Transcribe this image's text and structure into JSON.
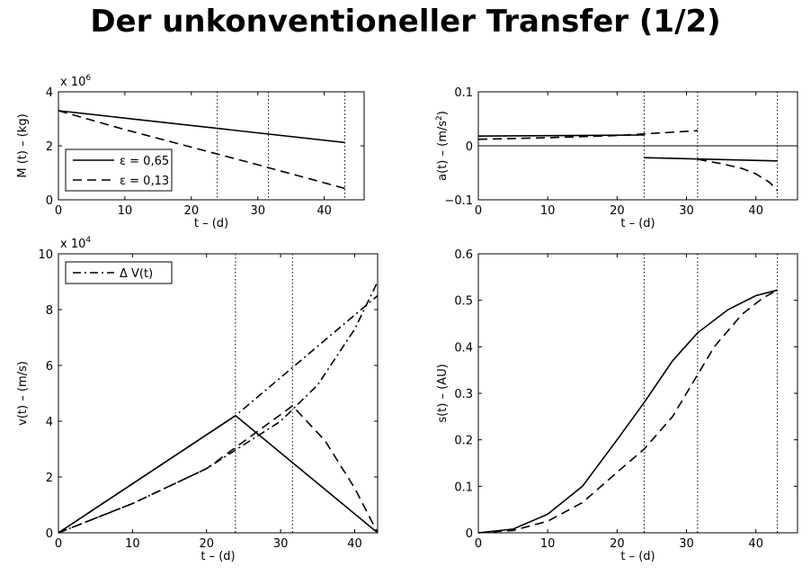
{
  "title": "Der unkonventioneller Transfer (1/2)",
  "chart_data": [
    {
      "type": "line",
      "xlabel": "t – (d)",
      "ylabel": "M (t) – (kg)",
      "multiplier": "x 10",
      "multiplier_exp": "6",
      "xlim": [
        0,
        46
      ],
      "ylim": [
        0,
        4
      ],
      "xticks": [
        "0",
        "10",
        "20",
        "30",
        "40"
      ],
      "yticks": [
        "0",
        "2",
        "4"
      ],
      "legend": "inside",
      "vlines": [
        23.9,
        31.6,
        43.1
      ],
      "series": [
        {
          "name": "ε = 0,65",
          "style": "solid",
          "x": [
            0,
            43.1
          ],
          "y": [
            3.3,
            2.12
          ]
        },
        {
          "name": "ε = 0,13",
          "style": "dashed",
          "x": [
            0,
            10,
            20,
            30,
            43.1
          ],
          "y": [
            3.3,
            2.6,
            1.95,
            1.3,
            0.42
          ]
        }
      ]
    },
    {
      "type": "line",
      "xlabel": "t – (d)",
      "ylabel": "a(t) – (m/s",
      "ylabel_exp": "2",
      "xlim": [
        0,
        46
      ],
      "ylim": [
        -0.1,
        0.1
      ],
      "xticks": [
        "0",
        "10",
        "20",
        "30",
        "40"
      ],
      "yticks": [
        "−0.1",
        "0",
        "0.1"
      ],
      "vlines": [
        23.9,
        31.6,
        43.1
      ],
      "zero_line": true,
      "series": [
        {
          "style": "solid",
          "segments": [
            {
              "x": [
                0,
                23.9
              ],
              "y": [
                0.018,
                0.02
              ]
            },
            {
              "x": [
                23.9,
                43.1
              ],
              "y": [
                -0.022,
                -0.028
              ]
            }
          ]
        },
        {
          "style": "dashed",
          "segments": [
            {
              "x": [
                0,
                10,
                20,
                31.6
              ],
              "y": [
                0.012,
                0.015,
                0.019,
                0.028
              ]
            },
            {
              "x": [
                31.6,
                35,
                38,
                40,
                42,
                43.1
              ],
              "y": [
                -0.025,
                -0.033,
                -0.042,
                -0.052,
                -0.068,
                -0.083
              ]
            }
          ]
        }
      ]
    },
    {
      "type": "line",
      "xlabel": "t – (d)",
      "ylabel": "v(t) – (m/s)",
      "multiplier": "x 10",
      "multiplier_exp": "4",
      "xlim": [
        0,
        43.1
      ],
      "ylim": [
        0,
        10
      ],
      "xticks": [
        "0",
        "10",
        "20",
        "30",
        "40"
      ],
      "yticks": [
        "0",
        "2",
        "4",
        "6",
        "8",
        "10"
      ],
      "legend": "inside",
      "vlines": [
        23.9,
        31.6,
        43.1
      ],
      "series": [
        {
          "name": "Δ V(t)",
          "style": "dashdot",
          "segments": [
            {
              "x": [
                0,
                23.9,
                43.1
              ],
              "y": [
                0,
                4.2,
                8.5
              ]
            },
            {
              "x": [
                0,
                10,
                20,
                30,
                35,
                40,
                43.1
              ],
              "y": [
                0,
                1.05,
                2.3,
                4.0,
                5.3,
                7.3,
                9.0
              ]
            }
          ]
        },
        {
          "style": "solid",
          "x": [
            0,
            23.9,
            43.1
          ],
          "y": [
            0,
            4.2,
            0
          ]
        },
        {
          "style": "dashed",
          "x": [
            0,
            10,
            20,
            31.6,
            36,
            40,
            43.1
          ],
          "y": [
            0,
            1.05,
            2.3,
            4.55,
            3.3,
            1.6,
            0
          ]
        }
      ]
    },
    {
      "type": "line",
      "xlabel": "t – (d)",
      "ylabel": "s(t) – (AU)",
      "xlim": [
        0,
        46
      ],
      "ylim": [
        0,
        0.6
      ],
      "xticks": [
        "0",
        "10",
        "20",
        "30",
        "40"
      ],
      "yticks": [
        "0",
        "0.1",
        "0.2",
        "0.3",
        "0.4",
        "0.5",
        "0.6"
      ],
      "vlines": [
        23.9,
        31.6,
        43.1
      ],
      "series": [
        {
          "style": "solid",
          "x": [
            0,
            5,
            10,
            15,
            20,
            23.9,
            28,
            31.6,
            36,
            40,
            43.1
          ],
          "y": [
            0,
            0.008,
            0.04,
            0.1,
            0.2,
            0.28,
            0.37,
            0.43,
            0.48,
            0.51,
            0.522
          ]
        },
        {
          "style": "dashed",
          "x": [
            0,
            5,
            10,
            15,
            20,
            23.9,
            28,
            31.6,
            34,
            38,
            41,
            43.1
          ],
          "y": [
            0,
            0.005,
            0.025,
            0.065,
            0.13,
            0.18,
            0.25,
            0.34,
            0.4,
            0.47,
            0.505,
            0.522
          ]
        }
      ]
    }
  ]
}
